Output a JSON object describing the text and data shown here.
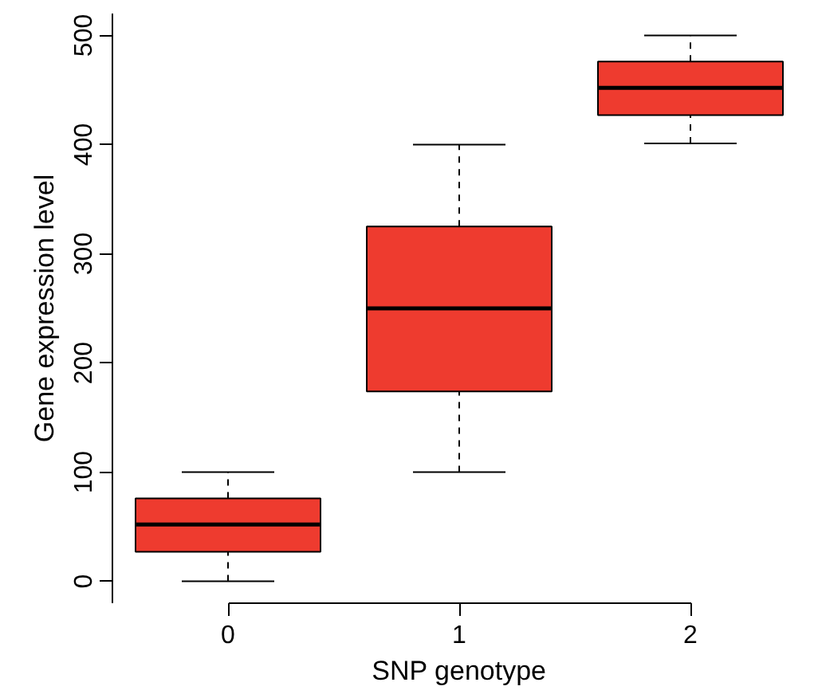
{
  "chart_data": {
    "type": "box",
    "xlabel": "SNP genotype",
    "ylabel": "Gene expression level",
    "categories": [
      "0",
      "1",
      "2"
    ],
    "series": [
      {
        "color": "#ee3b2f",
        "boxes": [
          {
            "low": 0,
            "q1": 27,
            "median": 52,
            "q3": 76,
            "high": 100
          },
          {
            "low": 100,
            "q1": 174,
            "median": 250,
            "q3": 325,
            "high": 400
          },
          {
            "low": 401,
            "q1": 427,
            "median": 452,
            "q3": 476,
            "high": 500
          }
        ]
      }
    ],
    "ylim": [
      -20,
      520
    ],
    "yticks": [
      0,
      100,
      200,
      300,
      400,
      500
    ],
    "grid": false
  }
}
